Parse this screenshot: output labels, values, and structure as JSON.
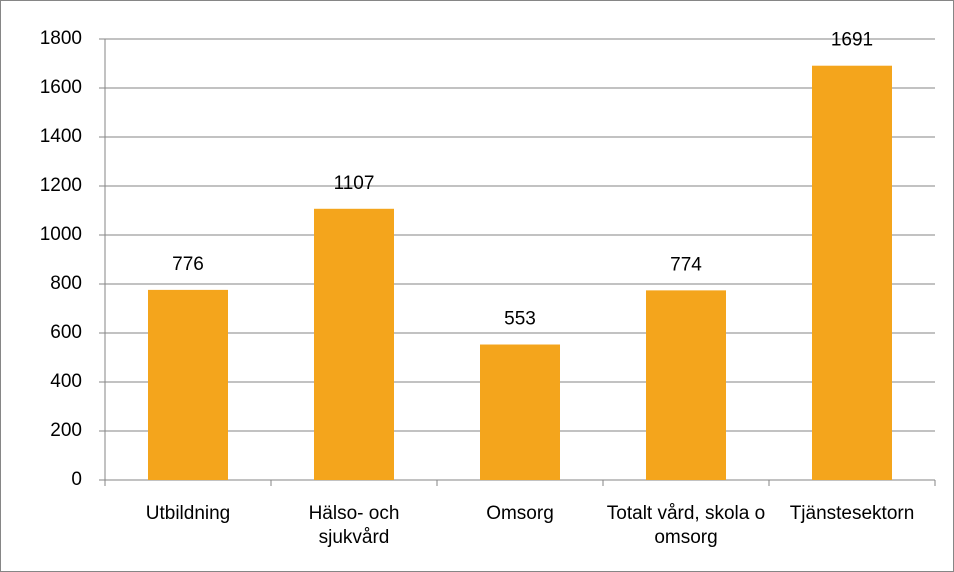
{
  "chart_data": {
    "type": "bar",
    "categories": [
      "Utbildning",
      "Hälso- och sjukvård",
      "Omsorg",
      "Totalt vård, skola o omsorg",
      "Tjänstesektorn"
    ],
    "values": [
      776,
      1107,
      553,
      774,
      1691
    ],
    "color": "#f4a51c",
    "ylim": [
      0,
      1800
    ],
    "yticks": [
      0,
      200,
      400,
      600,
      800,
      1000,
      1200,
      1400,
      1600,
      1800
    ],
    "grid": true
  }
}
